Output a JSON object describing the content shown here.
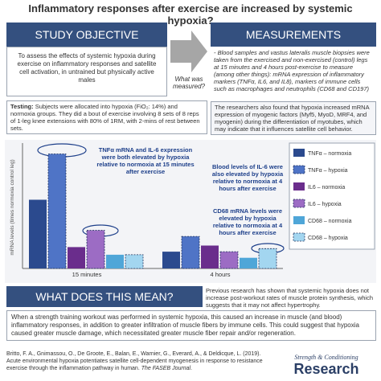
{
  "header": {
    "title": "Inflammatory responses after exercise are increased by systemic hypoxia?"
  },
  "objective": {
    "heading": "STUDY OBJECTIVE",
    "text": "To assess the effects of systemic hypoxia during exercise on inflammatory responses and satellite cell activation, in untrained but physically active males"
  },
  "arrow_label": "What was measured?",
  "measurements": {
    "heading": "MEASUREMENTS",
    "text": "- Blood samples and vastus lateralis muscle biopsies were taken from the exercised and non-exercised (control) legs at 15 minutes and 4 hours post-exercise to measure (among other things): mRNA expression of inflammatory markers (TNFα, IL6, and IL8), markers of immune cells such as macrophages and neutrophils (CD68 and CD197)"
  },
  "testing": {
    "label": "Testing:",
    "text": "Subjects were allocated into hypoxia (FiO₂: 14%) and normoxia groups. They did a bout of exercise involving 8 sets of 8 reps of 1-leg knee extensions with 80% of 1RM, with 2-mins of rest between sets."
  },
  "findings": "The researchers also found that hypoxia increased mRNA expression of myogenic factors (Myf5, MyoD, MRF4, and myogenin) during the differentiation of myotubes, which may indicate that it influences satellite cell behavior.",
  "chart_data": {
    "type": "bar",
    "y_label": "mRNA levels (times normoxia control leg)",
    "categories": [
      "15 minutes",
      "4 hours"
    ],
    "ylim": [
      0,
      8
    ],
    "series": [
      {
        "name": "TNFα – normoxia",
        "color": "#2b4a8e",
        "dashed": false,
        "values": [
          4.5,
          1.1
        ]
      },
      {
        "name": "TNFα – hypoxia",
        "color": "#4f74c6",
        "dashed": true,
        "values": [
          7.5,
          2.1
        ]
      },
      {
        "name": "IL6 – normoxia",
        "color": "#6a2d8c",
        "dashed": false,
        "values": [
          1.4,
          1.5
        ]
      },
      {
        "name": "IL6 – hypoxia",
        "color": "#9c6cc4",
        "dashed": true,
        "values": [
          2.5,
          1.1
        ]
      },
      {
        "name": "CD68 – normoxia",
        "color": "#4fa6d8",
        "dashed": false,
        "values": [
          0.9,
          0.7
        ]
      },
      {
        "name": "CD68 – hypoxia",
        "color": "#a3d6f0",
        "dashed": true,
        "values": [
          0.9,
          1.3
        ]
      }
    ],
    "annotations": [
      "TNFα mRNA and IL-6 expression were both elevated by hypoxia relative to normoxia at 15 minutes after exercise",
      "Blood levels of IL-6 were also elevated by hypoxia relative to normoxia at 4 hours after exercise",
      "CD68 mRNA levels were elevated by hypoxia relative to normoxia at 4 hours after exercise"
    ]
  },
  "meaning": {
    "heading": "WHAT DOES THIS MEAN?",
    "side_text": "Previous research has shown that systemic hypoxia does not increase post-workout rates of muscle protein synthesis, which suggests that it may not affect hypertrophy.",
    "text": "When a strength training workout was performed in systemic hypoxia, this caused an increase in muscle (and blood) inflammatory responses, in addition to greater infiltration of muscle fibers by immune cells. This could suggest that hypoxia caused greater muscle damage, which necessitated greater muscle fiber repair and/or regeneration."
  },
  "citation": {
    "text": "Britto, F. A., Gnimassou, O., De Groote, E., Balan, E., Warnier, G., Everard, A., & Deldicque, L. (2019). Acute environmental hypoxia potentiates satellite cell-dependent myogenesis in response to resistance exercise through the inflammation pathway in human. ",
    "journal": "The FASEB Journal",
    "end": "."
  },
  "logo": {
    "top": "Strength & Conditioning",
    "bottom": "Research"
  }
}
